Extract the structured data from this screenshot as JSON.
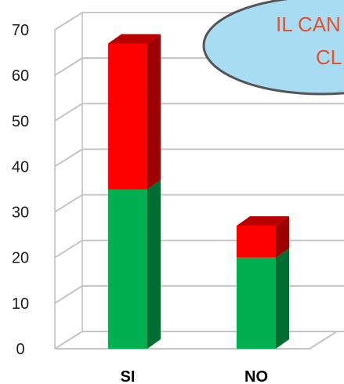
{
  "chart_data": {
    "type": "bar",
    "stacked": true,
    "three_d": true,
    "categories": [
      "SI",
      "NO"
    ],
    "series": [
      {
        "values": [
          35,
          20
        ],
        "color": "#00b050"
      },
      {
        "values": [
          32,
          7
        ],
        "color": "#ff0000"
      }
    ],
    "y_ticks": [
      "0",
      "10",
      "20",
      "30",
      "40",
      "50",
      "60",
      "70"
    ],
    "ylim": [
      0,
      70
    ],
    "grid": true,
    "title": "",
    "xlabel": "",
    "ylabel": ""
  },
  "callout": {
    "line1": "IL CAN",
    "line2": "CL",
    "fill_color": "#a8dcf2",
    "text_color": "#e8502a"
  }
}
